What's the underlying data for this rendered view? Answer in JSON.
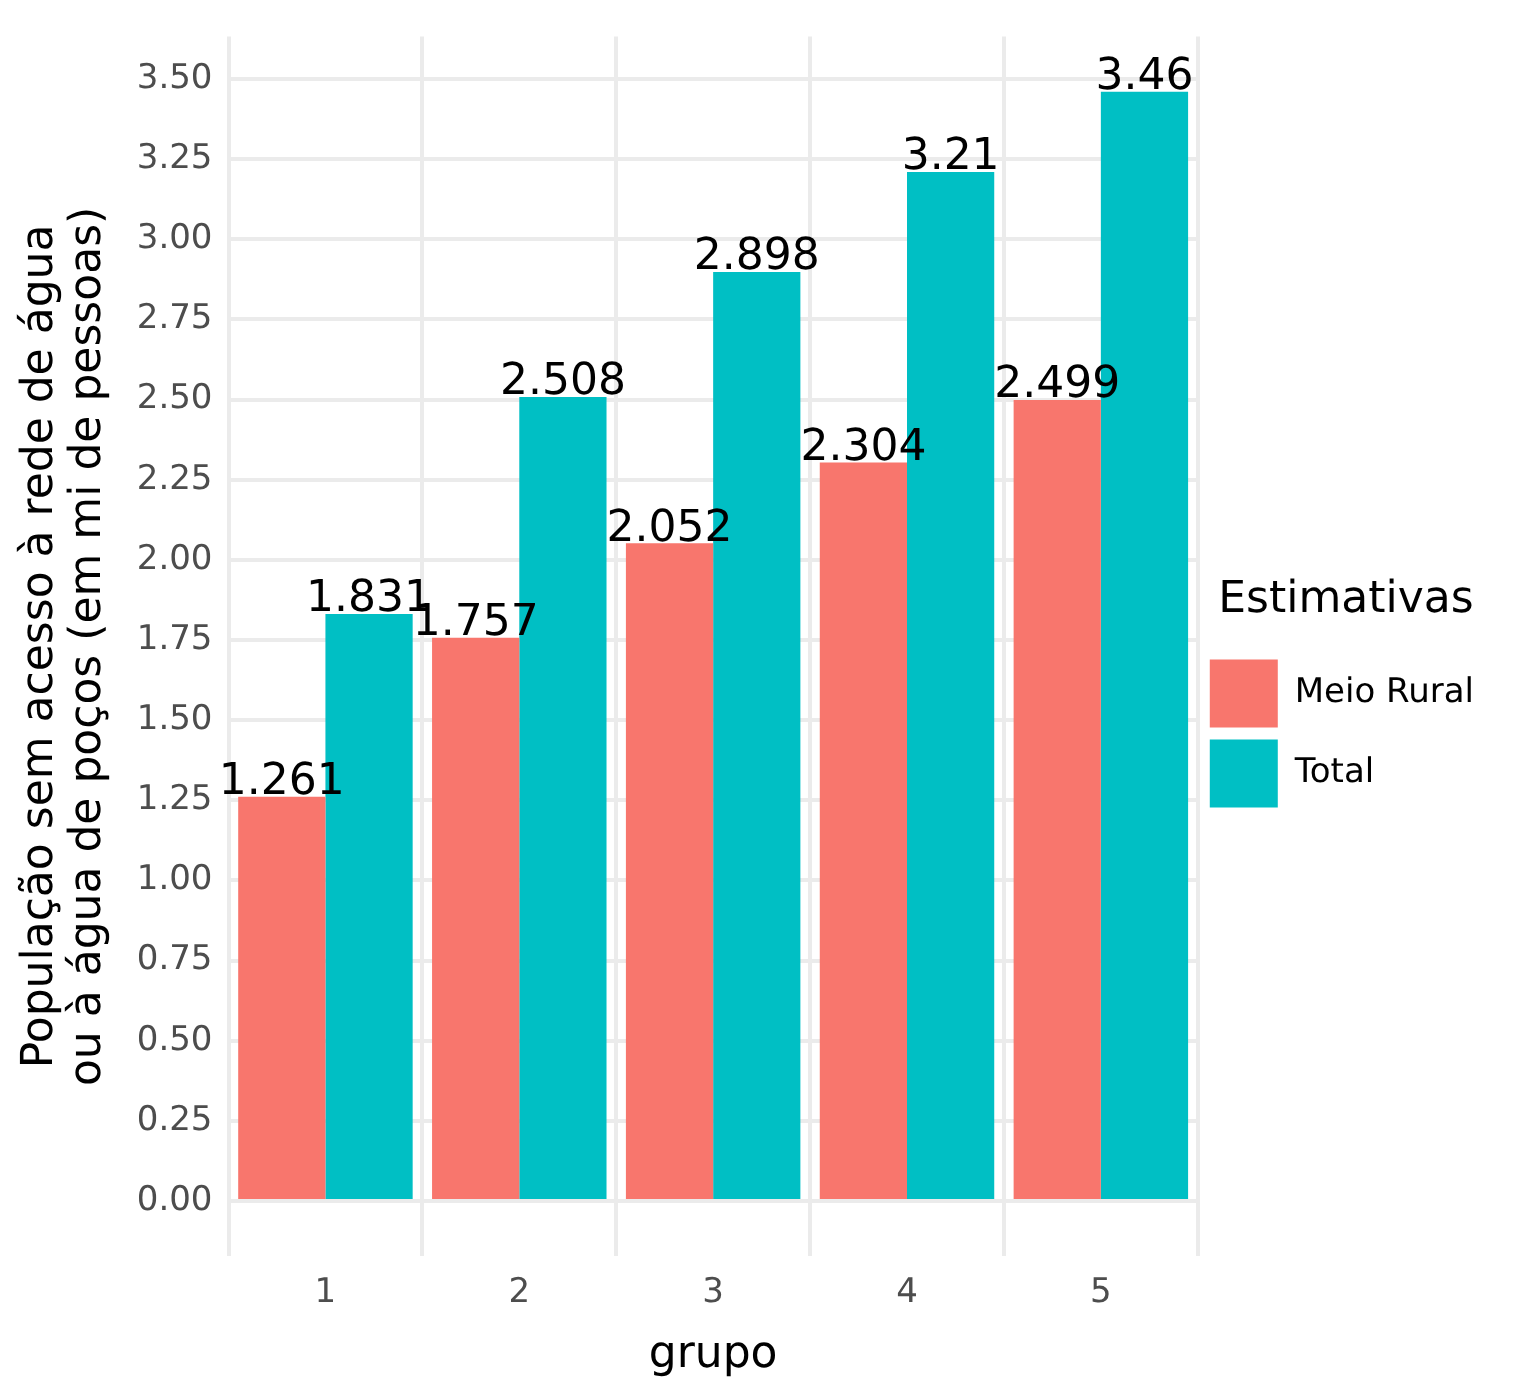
{
  "chart_data": {
    "type": "bar",
    "categories": [
      "1",
      "2",
      "3",
      "4",
      "5"
    ],
    "series": [
      {
        "name": "Meio Rural",
        "color": "#f8766d",
        "values": [
          1.261,
          1.757,
          2.052,
          2.304,
          2.499
        ]
      },
      {
        "name": "Total",
        "color": "#00bfc4",
        "values": [
          1.831,
          2.508,
          2.898,
          3.21,
          3.46
        ]
      }
    ],
    "xlabel": "grupo",
    "ylabel": "População sem acesso à rede de água\nou à água de poços (em mi de pessoas)",
    "legend_title": "Estimativas",
    "ylim": [
      -0.173,
      3.633
    ],
    "yticks": [
      {
        "value": 0,
        "label": "0.00"
      },
      {
        "value": 0.25,
        "label": "0.25"
      },
      {
        "value": 0.5,
        "label": "0.50"
      },
      {
        "value": 0.75,
        "label": "0.75"
      },
      {
        "value": 1,
        "label": "1.00"
      },
      {
        "value": 1.25,
        "label": "1.25"
      },
      {
        "value": 1.5,
        "label": "1.50"
      },
      {
        "value": 1.75,
        "label": "1.75"
      },
      {
        "value": 2,
        "label": "2.00"
      },
      {
        "value": 2.25,
        "label": "2.25"
      },
      {
        "value": 2.5,
        "label": "2.50"
      },
      {
        "value": 2.75,
        "label": "2.75"
      },
      {
        "value": 3,
        "label": "3.00"
      },
      {
        "value": 3.25,
        "label": "3.25"
      },
      {
        "value": 3.5,
        "label": "3.50"
      }
    ],
    "grid": true,
    "legend": "right",
    "data_labels": true
  }
}
